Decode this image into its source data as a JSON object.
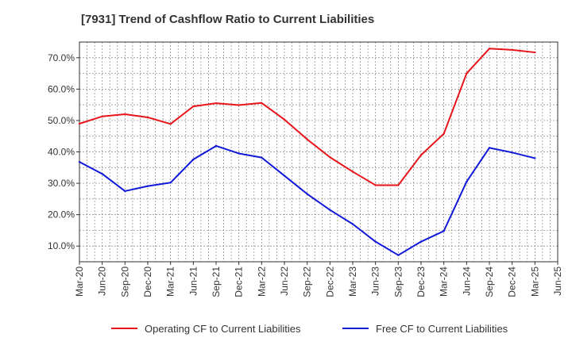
{
  "chart_data": {
    "type": "line",
    "title": "[7931]  Trend of Cashflow Ratio to Current Liabilities",
    "xlabel": "",
    "ylabel": "",
    "x_ticks": [
      "Mar-20",
      "Jun-20",
      "Sep-20",
      "Dec-20",
      "Mar-21",
      "Jun-21",
      "Sep-21",
      "Dec-21",
      "Mar-22",
      "Jun-22",
      "Sep-22",
      "Dec-22",
      "Mar-23",
      "Jun-23",
      "Sep-23",
      "Dec-23",
      "Mar-24",
      "Jun-24",
      "Sep-24",
      "Dec-24",
      "Mar-25",
      "Jun-25"
    ],
    "y_ticks": [
      "10.0%",
      "20.0%",
      "30.0%",
      "40.0%",
      "50.0%",
      "60.0%",
      "70.0%"
    ],
    "y_tick_values": [
      10,
      20,
      30,
      40,
      50,
      60,
      70
    ],
    "ylim": [
      5,
      75
    ],
    "grid": true,
    "legend_position": "bottom",
    "categories": [
      "Mar-20",
      "Jun-20",
      "Sep-20",
      "Dec-20",
      "Mar-21",
      "Jun-21",
      "Sep-21",
      "Dec-21",
      "Mar-22",
      "Jun-22",
      "Sep-22",
      "Dec-22",
      "Mar-23",
      "Jun-23",
      "Sep-23",
      "Dec-23",
      "Mar-24",
      "Jun-24",
      "Sep-24",
      "Dec-24",
      "Mar-25"
    ],
    "series": [
      {
        "name": "Operating CF to Current Liabilities",
        "color": "#e8141b",
        "values": [
          49.0,
          51.3,
          52.0,
          51.0,
          48.9,
          54.5,
          55.5,
          54.9,
          55.6,
          50.3,
          44.0,
          38.3,
          33.7,
          29.4,
          29.4,
          39.0,
          45.8,
          65.0,
          72.9,
          72.5,
          71.7
        ]
      },
      {
        "name": "Free CF to Current Liabilities",
        "color": "#1119d8",
        "values": [
          36.8,
          33.0,
          27.5,
          29.1,
          30.2,
          37.6,
          41.9,
          39.5,
          38.2,
          32.4,
          26.6,
          21.5,
          17.0,
          11.4,
          7.1,
          11.4,
          14.8,
          30.5,
          41.3,
          39.8,
          38.0
        ]
      }
    ]
  }
}
